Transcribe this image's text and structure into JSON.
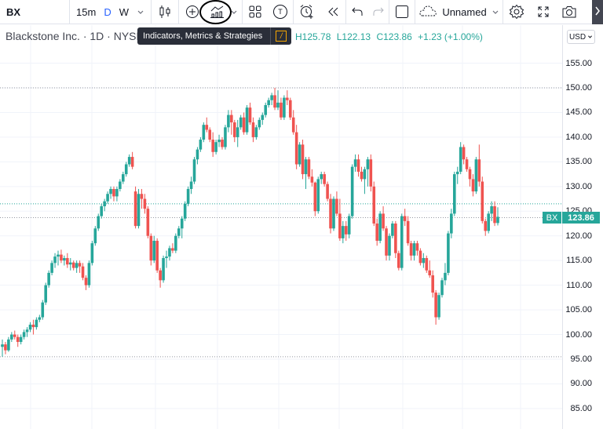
{
  "toolbar": {
    "symbol": "BX",
    "intervals": [
      {
        "label": "15m",
        "active": false
      },
      {
        "label": "D",
        "active": true
      },
      {
        "label": "W",
        "active": false
      }
    ],
    "icons": [
      "interval-dropdown-icon",
      "candles-icon",
      "compare-add-icon",
      "indicators-icon",
      "templates-icon",
      "text-icon",
      "alert-icon",
      "replay-icon",
      "undo-icon",
      "redo-icon",
      "layout-icon",
      "cloud-icon",
      "settings-icon",
      "fullscreen-icon",
      "snapshot-icon"
    ],
    "layout_name": "Unnamed",
    "alert_badge": "T"
  },
  "tooltip": {
    "text": "Indicators, Metrics & Strategies",
    "shortcut": "/"
  },
  "legend": {
    "title": "Blackstone Inc. · 1D · NYSE",
    "high_label": "H",
    "high": "125.78",
    "low_label": "L",
    "low": "122.13",
    "close_label": "C",
    "close": "123.86",
    "change": "+1.23 (+1.00%)"
  },
  "price_axis": {
    "currency": "USD",
    "labels": [
      "155.00",
      "150.00",
      "145.00",
      "140.00",
      "135.00",
      "130.00",
      "125.00",
      "120.00",
      "115.00",
      "110.00",
      "105.00",
      "100.00",
      "95.00",
      "90.00",
      "85.00"
    ],
    "last_price_symbol": "BX",
    "last_price": "123.86"
  },
  "colors": {
    "up": "#26a69a",
    "down": "#ef5350",
    "accent": "#2962ff",
    "tooltip_bg": "#2a2e39"
  },
  "chart_data": {
    "type": "candlestick",
    "title": "Blackstone Inc. · 1D · NYSE",
    "ylabel": "USD",
    "ylim": [
      82,
      159
    ],
    "horizontal_lines": [
      150.0,
      95.5
    ],
    "last_close": 123.86,
    "candles": [
      [
        97.5,
        99,
        95.5,
        98
      ],
      [
        98,
        98.5,
        96,
        96.8
      ],
      [
        96.8,
        99.5,
        96.5,
        99
      ],
      [
        99,
        100.5,
        98.5,
        100
      ],
      [
        100,
        100.8,
        99,
        99.5
      ],
      [
        99.5,
        100,
        97.5,
        98.5
      ],
      [
        98.5,
        100,
        98,
        99.5
      ],
      [
        99.5,
        101,
        99,
        100.5
      ],
      [
        100.5,
        101.5,
        99.5,
        101
      ],
      [
        101,
        102.5,
        100.5,
        102
      ],
      [
        102,
        103,
        100,
        101.5
      ],
      [
        101.5,
        103.5,
        101,
        103
      ],
      [
        103,
        104,
        102.5,
        103.5
      ],
      [
        103.5,
        107,
        103,
        106.5
      ],
      [
        106.5,
        110.5,
        106,
        110
      ],
      [
        110,
        113,
        109.5,
        112.5
      ],
      [
        112.5,
        115,
        112,
        114.5
      ],
      [
        114.5,
        116.5,
        113.5,
        115.8
      ],
      [
        115.8,
        117,
        114,
        116.2
      ],
      [
        116.2,
        117.2,
        114.5,
        115
      ],
      [
        115,
        116,
        114,
        115.5
      ],
      [
        115.5,
        116.5,
        113.5,
        114.2
      ],
      [
        114.2,
        115.5,
        113,
        114.6
      ],
      [
        114.6,
        115,
        113,
        113.5
      ],
      [
        113.5,
        115,
        112.5,
        114.5
      ],
      [
        114.5,
        115,
        112.5,
        113.8
      ],
      [
        113.8,
        114.5,
        111,
        111.5
      ],
      [
        111.5,
        112,
        109,
        110
      ],
      [
        110,
        115,
        109.5,
        114.5
      ],
      [
        114.5,
        119,
        114,
        118.5
      ],
      [
        118.5,
        122,
        118,
        121.5
      ],
      [
        121.5,
        124.5,
        121,
        124
      ],
      [
        124,
        126.5,
        123.5,
        126
      ],
      [
        126,
        127.5,
        125,
        127
      ],
      [
        127,
        129,
        126.5,
        128.5
      ],
      [
        128.5,
        130,
        127.5,
        129.5
      ],
      [
        129.5,
        130,
        127,
        128
      ],
      [
        128,
        130,
        127,
        129.5
      ],
      [
        129.5,
        131.5,
        129,
        131
      ],
      [
        131,
        133,
        130.5,
        132.5
      ],
      [
        132.5,
        135,
        132,
        134.5
      ],
      [
        134.5,
        136.5,
        134,
        136
      ],
      [
        136,
        137,
        133.5,
        134
      ],
      [
        129,
        130,
        121.5,
        122
      ],
      [
        122,
        129.5,
        121.5,
        128.5
      ],
      [
        128.5,
        129.5,
        125.5,
        127.5
      ],
      [
        127.5,
        128.5,
        124.5,
        125.5
      ],
      [
        125.5,
        126,
        119.5,
        120
      ],
      [
        120,
        120.5,
        114,
        115
      ],
      [
        115,
        120,
        114.5,
        119
      ],
      [
        119,
        119.5,
        112.5,
        113
      ],
      [
        113,
        113.5,
        109.5,
        111
      ],
      [
        111,
        116,
        110.5,
        115.5
      ],
      [
        115.5,
        117,
        113.5,
        115.8
      ],
      [
        115.8,
        118,
        115,
        117.5
      ],
      [
        117.5,
        118.5,
        116.5,
        117
      ],
      [
        117,
        120.5,
        116.5,
        120
      ],
      [
        120,
        122,
        119.5,
        121.5
      ],
      [
        121.5,
        124,
        119.5,
        123.5
      ],
      [
        123.5,
        127,
        123,
        126.5
      ],
      [
        126.5,
        130,
        126,
        129.5
      ],
      [
        129.5,
        132,
        128.5,
        131
      ],
      [
        131,
        136,
        130.5,
        135.5
      ],
      [
        135.5,
        138,
        134.5,
        137.5
      ],
      [
        137.5,
        140,
        137,
        139.5
      ],
      [
        139.5,
        143,
        139,
        142.5
      ],
      [
        142.5,
        144,
        141,
        141.5
      ],
      [
        141.5,
        142,
        139,
        139.5
      ],
      [
        139.5,
        141,
        136,
        137
      ],
      [
        137,
        139.5,
        136.5,
        139
      ],
      [
        139,
        140.5,
        138,
        139.5
      ],
      [
        139.5,
        140,
        137.5,
        138
      ],
      [
        138,
        142.5,
        137.5,
        142
      ],
      [
        142,
        145.5,
        141,
        144.5
      ],
      [
        144.5,
        145.5,
        140.5,
        143
      ],
      [
        143,
        143.5,
        139,
        140
      ],
      [
        140,
        143.5,
        138,
        142
      ],
      [
        142,
        144.5,
        141.5,
        144
      ],
      [
        144,
        145,
        140.5,
        141
      ],
      [
        141,
        146.5,
        140.5,
        146
      ],
      [
        146,
        147,
        142.5,
        143
      ],
      [
        143,
        144,
        139,
        140
      ],
      [
        140,
        142.5,
        139.5,
        142
      ],
      [
        142,
        144,
        141.5,
        143.5
      ],
      [
        143.5,
        145,
        142.5,
        144.5
      ],
      [
        144.5,
        147,
        144,
        146.5
      ],
      [
        146.5,
        148,
        146,
        147.5
      ],
      [
        147.5,
        149,
        146.5,
        148.5
      ],
      [
        148.5,
        150,
        145.5,
        146
      ],
      [
        146,
        149.5,
        145.5,
        147
      ],
      [
        147,
        148,
        143.5,
        144
      ],
      [
        144,
        148.5,
        143.5,
        148
      ],
      [
        148,
        149.5,
        146.5,
        147.5
      ],
      [
        147.5,
        148,
        143.5,
        144
      ],
      [
        144,
        145.5,
        140.5,
        141
      ],
      [
        141,
        142.5,
        133.5,
        134.5
      ],
      [
        134.5,
        139,
        134,
        138.5
      ],
      [
        138.5,
        139.5,
        131.5,
        132.5
      ],
      [
        132.5,
        136,
        129.5,
        135.5
      ],
      [
        135.5,
        136,
        131.5,
        132
      ],
      [
        132,
        133.5,
        130,
        130.8
      ],
      [
        130.8,
        131,
        124,
        125
      ],
      [
        125,
        132,
        124.5,
        131.5
      ],
      [
        131.5,
        133,
        130.5,
        132.5
      ],
      [
        132.5,
        133,
        130,
        130.5
      ],
      [
        130.5,
        131,
        127,
        127.5
      ],
      [
        127.5,
        128.5,
        120.5,
        121.5
      ],
      [
        121.5,
        128,
        121,
        127.5
      ],
      [
        127.5,
        129,
        124,
        124.5
      ],
      [
        124.5,
        127.5,
        119,
        119.5
      ],
      [
        119.5,
        123,
        118.5,
        122
      ],
      [
        122,
        123,
        119,
        120.3
      ],
      [
        120.3,
        124.5,
        119.5,
        124
      ],
      [
        124,
        134.5,
        123.5,
        134
      ],
      [
        134,
        136.5,
        133,
        135.5
      ],
      [
        135.5,
        136.5,
        132,
        133
      ],
      [
        133,
        134,
        131,
        131.5
      ],
      [
        131.5,
        134,
        128.5,
        133.5
      ],
      [
        133.5,
        136,
        130,
        135.5
      ],
      [
        135.5,
        136.5,
        129,
        130
      ],
      [
        130,
        131,
        122,
        122.5
      ],
      [
        122.5,
        123.5,
        118,
        119
      ],
      [
        119,
        125,
        118.5,
        124.5
      ],
      [
        124.5,
        126,
        121,
        121.5
      ],
      [
        121.5,
        122,
        115,
        116
      ],
      [
        116,
        120.5,
        115,
        120
      ],
      [
        120,
        123,
        119.5,
        122.5
      ],
      [
        122.5,
        123,
        115.5,
        116.5
      ],
      [
        116.5,
        117,
        113,
        113.5
      ],
      [
        113.5,
        124.5,
        113,
        124
      ],
      [
        124,
        125.5,
        122,
        123
      ],
      [
        123,
        124,
        118,
        118.5
      ],
      [
        118.5,
        119,
        115,
        116
      ],
      [
        116,
        119,
        115,
        118.5
      ],
      [
        118.5,
        119,
        116,
        117
      ],
      [
        117,
        117.5,
        114,
        114.5
      ],
      [
        114.5,
        116.5,
        113.5,
        115.5
      ],
      [
        115.5,
        116,
        112.5,
        113
      ],
      [
        113,
        115,
        111.5,
        112
      ],
      [
        112,
        113,
        107.5,
        108.5
      ],
      [
        108.5,
        109,
        102,
        103.5
      ],
      [
        103.5,
        108.5,
        103,
        108
      ],
      [
        108,
        111.5,
        107.5,
        111
      ],
      [
        111,
        114.5,
        110,
        112.5
      ],
      [
        112.5,
        121,
        112,
        120.5
      ],
      [
        120.5,
        125.5,
        119.5,
        124.5
      ],
      [
        124.5,
        133,
        124,
        132.5
      ],
      [
        132.5,
        134,
        130.5,
        133
      ],
      [
        133,
        139,
        132.5,
        138
      ],
      [
        138,
        138.5,
        134.5,
        135.5
      ],
      [
        135.5,
        136,
        133,
        133.5
      ],
      [
        133.5,
        134,
        130,
        131.5
      ],
      [
        131.5,
        132.5,
        128,
        129
      ],
      [
        129,
        136,
        128.5,
        135.5
      ],
      [
        135.5,
        138.5,
        130,
        131
      ],
      [
        131,
        132,
        122.5,
        123
      ],
      [
        123,
        123.5,
        120,
        121
      ],
      [
        121,
        125,
        120.5,
        124.5
      ],
      [
        124.5,
        127,
        123,
        126
      ],
      [
        126,
        127,
        122,
        122.6
      ],
      [
        122.6,
        125.8,
        122.1,
        123.86
      ]
    ]
  }
}
